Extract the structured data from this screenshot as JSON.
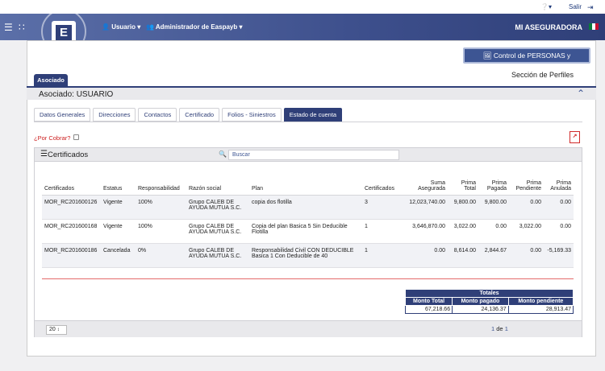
{
  "topbar": {
    "help_icon": "help-icon",
    "exit_label": "Salir"
  },
  "nav": {
    "usuario_label": "Usuario",
    "admin_label": "Administrador de Easpayb",
    "company": "MI ASEGURADORA",
    "logo_letter": "E"
  },
  "control_button": "Control de PERSONAS y RELACIONES",
  "section_title": "Sección de Perfiles",
  "asociado_tab": "Asociado",
  "panel_label": "Asociado: USUARIO",
  "tabs": [
    "Datos Generales",
    "Direcciones",
    "Contactos",
    "Certificado",
    "Folios - Siniestros",
    "Estado de cuenta"
  ],
  "por_cobrar_label": "¿Por Cobrar?",
  "grid": {
    "title": "Certificados",
    "search_placeholder": "Buscar",
    "columns": [
      "Certificados",
      "Estatus",
      "Responsabilidad",
      "Razón social",
      "Plan",
      "Certificados",
      "Suma Asegurada",
      "Prima Total",
      "Prima Pagada",
      "Prima Pendiente",
      "Prima Anulada"
    ],
    "rows": [
      {
        "cert": "MOR_RC201600126",
        "estatus": "Vigente",
        "resp": "100%",
        "razon": "Grupo CALEB DE AYUDA MUTUA S.C.",
        "plan": "copia dos flotilla",
        "ncert": "3",
        "suma": "12,023,740.00",
        "total": "9,800.00",
        "pagada": "9,800.00",
        "pendiente": "0.00",
        "anulada": "0.00"
      },
      {
        "cert": "MOR_RC201600168",
        "estatus": "Vigente",
        "resp": "100%",
        "razon": "Grupo CALEB DE AYUDA MUTUA S.C.",
        "plan": "Copia del plan Basica 5 Sin Deducible Flotilla",
        "ncert": "1",
        "suma": "3,646,870.00",
        "total": "3,022.00",
        "pagada": "0.00",
        "pendiente": "3,022.00",
        "anulada": "0.00"
      },
      {
        "cert": "MOR_RC201600186",
        "estatus": "Cancelada",
        "resp": "0%",
        "razon": "Grupo CALEB DE AYUDA MUTUA S.C.",
        "plan": "Responsabilidad Civil CON DEDUCIBLE Basica 1 Con Deducible de 40",
        "ncert": "1",
        "suma": "0.00",
        "total": "8,614.00",
        "pagada": "2,844.67",
        "pendiente": "0.00",
        "anulada": "-5,169.33"
      }
    ],
    "totales": {
      "title": "Totales",
      "headers": [
        "Monto Total",
        "Monto pagado",
        "Monto pendiente"
      ],
      "values": [
        "67,218.66",
        "24,136.37",
        "28,913.47"
      ]
    },
    "page_size": "20",
    "page_current": "1",
    "page_of": "de",
    "page_total": "1"
  },
  "colors": {
    "primary": "#2f3f78",
    "accent_red": "#cc1e1e"
  }
}
